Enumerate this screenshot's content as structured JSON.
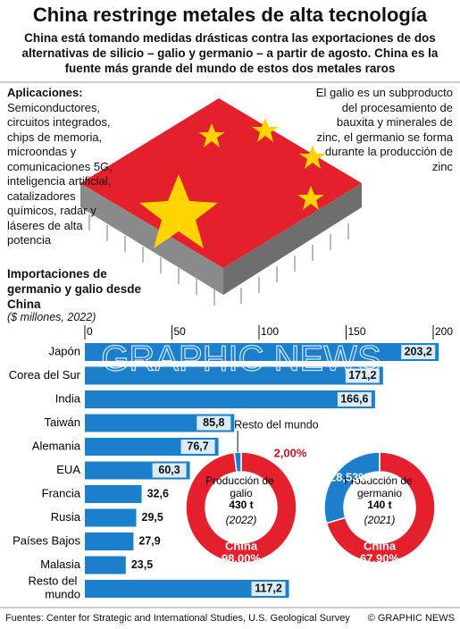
{
  "header": {
    "title": "China restringe metales de alta tecnología",
    "subtitle": "China está tomando medidas drásticas contra las exportaciones de dos alternativas de silicio – galio y germanio – a partir de agosto. China es la fuente más grande del mundo de estos dos metales raros"
  },
  "notes": {
    "applications_label": "Aplicaciones:",
    "applications": "Semiconductores, circuitos integrados, chips de memoria, microondas y comunicaciones 5G, inteligencia artificial, catalizadores químicos, radar y láseres de alta potencia",
    "origin": "El galio es un subproducto del procesamiento de bauxita y minerales de zinc, el germanio se forma durante la producción de zinc"
  },
  "watermark": "GRAPHIC NEWS",
  "chart_data": [
    {
      "type": "bar",
      "orientation": "horizontal",
      "title": "Importaciones de germanio y galio desde China",
      "subtitle": "($ millones, 2022)",
      "categories": [
        "Japón",
        "Corea del Sur",
        "India",
        "Taiwán",
        "Alemania",
        "EUA",
        "Francia",
        "Rusia",
        "Países Bajos",
        "Malasia",
        "Resto del mundo"
      ],
      "values": [
        203.2,
        171.2,
        166.6,
        85.8,
        76.7,
        60.3,
        32.6,
        29.5,
        27.9,
        23.5,
        117.2
      ],
      "value_labels": [
        "203,2",
        "171,2",
        "166,6",
        "85,8",
        "76,7",
        "60,3",
        "32,6",
        "29,5",
        "27,9",
        "23,5",
        "117,2"
      ],
      "color": "#1b7fcc",
      "xlim": [
        0,
        200
      ],
      "xticks": [
        0,
        50,
        100,
        150,
        200
      ]
    },
    {
      "type": "pie",
      "donut": true,
      "title": "Producción de galio",
      "total": "430 t",
      "year": "(2022)",
      "categories": [
        "China",
        "Resto del mundo"
      ],
      "values": [
        98,
        2
      ],
      "value_labels": [
        "98,00%",
        "2,00%"
      ],
      "colors": [
        "#e3202b",
        "#1b7fcc"
      ]
    },
    {
      "type": "pie",
      "donut": true,
      "title": "Producción de germanio",
      "total": "140 t",
      "year": "(2021)",
      "categories": [
        "China",
        null
      ],
      "values": [
        67.9,
        28.53
      ],
      "value_labels": [
        "67,90%",
        "28,53%"
      ],
      "colors": [
        "#e3202b",
        "#1b7fcc"
      ]
    }
  ],
  "footer": {
    "source": "Fuentes: Center for Strategic and International Studies, U.S. Geological Survey",
    "credit": "© GRAPHIC NEWS"
  }
}
